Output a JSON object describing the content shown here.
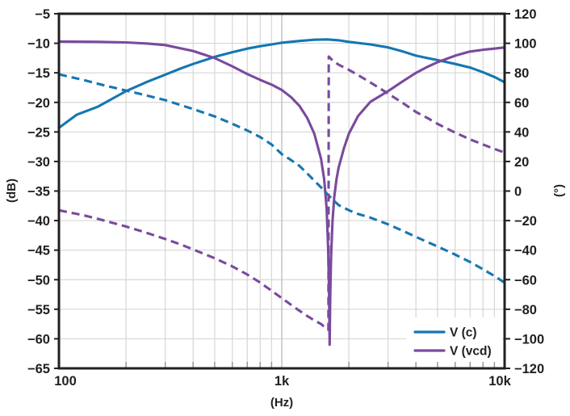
{
  "chart_data": {
    "type": "line",
    "title": "",
    "xlabel": "(Hz)",
    "ylabel_left": "(dB)",
    "ylabel_right": "(°)",
    "x_scale": "log",
    "x_min": 100,
    "x_max": 10000,
    "x_ticks": [
      {
        "v": 100,
        "label": "100"
      },
      {
        "v": 1000,
        "label": "1k"
      },
      {
        "v": 10000,
        "label": "10k"
      }
    ],
    "x_minor_ticks": [
      200,
      300,
      400,
      500,
      600,
      700,
      800,
      900,
      2000,
      3000,
      4000,
      5000,
      6000,
      7000,
      8000,
      9000
    ],
    "y_left": {
      "min": -65,
      "max": -5,
      "step": 5,
      "ticks": [
        {
          "v": -5,
          "label": "−5"
        },
        {
          "v": -10,
          "label": "−10"
        },
        {
          "v": -15,
          "label": "−15"
        },
        {
          "v": -20,
          "label": "−20"
        },
        {
          "v": -25,
          "label": "−25"
        },
        {
          "v": -30,
          "label": "−30"
        },
        {
          "v": -35,
          "label": "−35"
        },
        {
          "v": -40,
          "label": "−40"
        },
        {
          "v": -45,
          "label": "−45"
        },
        {
          "v": -50,
          "label": "−50"
        },
        {
          "v": -55,
          "label": "−55"
        },
        {
          "v": -60,
          "label": "−60"
        },
        {
          "v": -65,
          "label": "−65"
        }
      ]
    },
    "y_right": {
      "min": -120,
      "max": 120,
      "step": 20,
      "ticks": [
        {
          "v": 120,
          "label": "120"
        },
        {
          "v": 100,
          "label": "100"
        },
        {
          "v": 80,
          "label": "80"
        },
        {
          "v": 60,
          "label": "60"
        },
        {
          "v": 40,
          "label": "40"
        },
        {
          "v": 20,
          "label": "20"
        },
        {
          "v": 0,
          "label": "0"
        },
        {
          "v": -20,
          "label": "−20"
        },
        {
          "v": -40,
          "label": "−40"
        },
        {
          "v": -60,
          "label": "−60"
        },
        {
          "v": -80,
          "label": "−80"
        },
        {
          "v": -100,
          "label": "−100"
        },
        {
          "v": -120,
          "label": "−120"
        }
      ]
    },
    "series": [
      {
        "name": "V(c) magnitude",
        "axis": "left",
        "style": "solid",
        "color": "#1577b1",
        "points": [
          [
            100,
            -24.3
          ],
          [
            120,
            -22.1
          ],
          [
            150,
            -20.7
          ],
          [
            200,
            -18.1
          ],
          [
            250,
            -16.5
          ],
          [
            300,
            -15.3
          ],
          [
            350,
            -14.3
          ],
          [
            400,
            -13.5
          ],
          [
            500,
            -12.3
          ],
          [
            600,
            -11.5
          ],
          [
            700,
            -10.9
          ],
          [
            800,
            -10.5
          ],
          [
            900,
            -10.2
          ],
          [
            1000,
            -9.9
          ],
          [
            1200,
            -9.6
          ],
          [
            1400,
            -9.4
          ],
          [
            1600,
            -9.35
          ],
          [
            1800,
            -9.5
          ],
          [
            2000,
            -9.75
          ],
          [
            2500,
            -10.2
          ],
          [
            3000,
            -10.7
          ],
          [
            3500,
            -11.4
          ],
          [
            4000,
            -12.1
          ],
          [
            4500,
            -12.5
          ],
          [
            5000,
            -12.85
          ],
          [
            6000,
            -13.5
          ],
          [
            7000,
            -14.1
          ],
          [
            8000,
            -14.9
          ],
          [
            9000,
            -15.7
          ],
          [
            10000,
            -16.6
          ]
        ]
      },
      {
        "name": "V(vcd) magnitude",
        "axis": "left",
        "style": "solid",
        "color": "#7a4a9d",
        "points": [
          [
            100,
            -9.7
          ],
          [
            150,
            -9.75
          ],
          [
            200,
            -9.85
          ],
          [
            250,
            -10.05
          ],
          [
            300,
            -10.3
          ],
          [
            400,
            -11.3
          ],
          [
            500,
            -12.5
          ],
          [
            600,
            -13.9
          ],
          [
            700,
            -15.2
          ],
          [
            800,
            -16.2
          ],
          [
            900,
            -17.0
          ],
          [
            1000,
            -17.9
          ],
          [
            1100,
            -19.1
          ],
          [
            1200,
            -20.6
          ],
          [
            1300,
            -22.6
          ],
          [
            1400,
            -25.3
          ],
          [
            1500,
            -29.5
          ],
          [
            1550,
            -33
          ],
          [
            1590,
            -38
          ],
          [
            1615,
            -45
          ],
          [
            1630,
            -52
          ],
          [
            1640,
            -61
          ],
          [
            1650,
            -53
          ],
          [
            1665,
            -46
          ],
          [
            1690,
            -40
          ],
          [
            1720,
            -36
          ],
          [
            1760,
            -33
          ],
          [
            1800,
            -31
          ],
          [
            1900,
            -27.8
          ],
          [
            2000,
            -25.3
          ],
          [
            2200,
            -22.3
          ],
          [
            2500,
            -19.9
          ],
          [
            3000,
            -18.1
          ],
          [
            3500,
            -16.4
          ],
          [
            4000,
            -15.0
          ],
          [
            4500,
            -14.0
          ],
          [
            5000,
            -13.2
          ],
          [
            6000,
            -12.1
          ],
          [
            7000,
            -11.4
          ],
          [
            8000,
            -11.1
          ],
          [
            9000,
            -10.9
          ],
          [
            10000,
            -10.7
          ]
        ]
      },
      {
        "name": "V(c) phase",
        "axis": "right",
        "style": "dashed",
        "color": "#1577b1",
        "points": [
          [
            100,
            79
          ],
          [
            130,
            75
          ],
          [
            160,
            71.5
          ],
          [
            200,
            68
          ],
          [
            250,
            64.5
          ],
          [
            300,
            61.5
          ],
          [
            400,
            55.5
          ],
          [
            500,
            50.5
          ],
          [
            600,
            45.5
          ],
          [
            700,
            41
          ],
          [
            800,
            36.5
          ],
          [
            900,
            31.5
          ],
          [
            1000,
            25
          ],
          [
            1100,
            21
          ],
          [
            1200,
            17
          ],
          [
            1300,
            12
          ],
          [
            1400,
            7
          ],
          [
            1500,
            2.5
          ],
          [
            1600,
            -2
          ],
          [
            1700,
            -6
          ],
          [
            1800,
            -9.5
          ],
          [
            2000,
            -13
          ],
          [
            2200,
            -15.5
          ],
          [
            2500,
            -18
          ],
          [
            3000,
            -22.5
          ],
          [
            3500,
            -27
          ],
          [
            4000,
            -31
          ],
          [
            4500,
            -34.5
          ],
          [
            5000,
            -37.5
          ],
          [
            6000,
            -43
          ],
          [
            7000,
            -48
          ],
          [
            8000,
            -53
          ],
          [
            9000,
            -57.5
          ],
          [
            10000,
            -62
          ]
        ]
      },
      {
        "name": "V(vcd) phase",
        "axis": "right",
        "style": "dashed",
        "color": "#7a4a9d",
        "points": [
          [
            100,
            -13
          ],
          [
            130,
            -16.5
          ],
          [
            160,
            -20
          ],
          [
            200,
            -24
          ],
          [
            250,
            -28.5
          ],
          [
            300,
            -32.5
          ],
          [
            350,
            -36
          ],
          [
            400,
            -39.5
          ],
          [
            500,
            -45.5
          ],
          [
            600,
            -51
          ],
          [
            700,
            -56.5
          ],
          [
            800,
            -62
          ],
          [
            900,
            -67.5
          ],
          [
            1000,
            -72.5
          ],
          [
            1100,
            -77
          ],
          [
            1200,
            -81
          ],
          [
            1300,
            -84.5
          ],
          [
            1400,
            -87.5
          ],
          [
            1500,
            -90
          ],
          [
            1570,
            -92.5
          ],
          [
            1620,
            -94
          ],
          [
            1625,
            91
          ],
          [
            1700,
            88
          ],
          [
            1800,
            85.5
          ],
          [
            2000,
            82
          ],
          [
            2200,
            78.5
          ],
          [
            2500,
            73.5
          ],
          [
            3000,
            66
          ],
          [
            3500,
            59.5
          ],
          [
            4000,
            53.5
          ],
          [
            4500,
            49.5
          ],
          [
            5000,
            45.5
          ],
          [
            6000,
            39.5
          ],
          [
            7000,
            35
          ],
          [
            8000,
            31.5
          ],
          [
            9000,
            28.5
          ],
          [
            10000,
            26
          ]
        ]
      }
    ],
    "legend": {
      "position": "bottom-right",
      "entries": [
        {
          "label": "V (c)",
          "color": "#1577b1"
        },
        {
          "label": "V (vcd)",
          "color": "#7a4a9d"
        }
      ]
    },
    "grid": true,
    "colors": {
      "background": "#ffffff",
      "grid_minor": "#d6d6d6",
      "grid_major": "#c3c3c3",
      "axis": "#231f20",
      "text": "#231f20",
      "minor_tick": "#9a9a9a"
    }
  }
}
